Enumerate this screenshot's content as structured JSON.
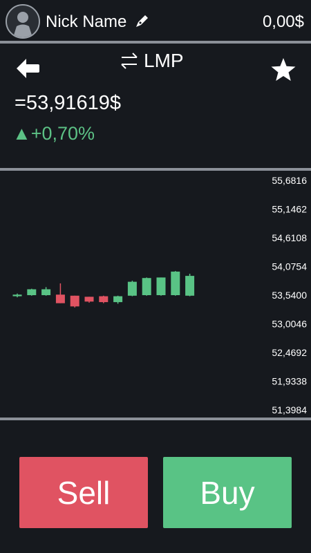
{
  "header": {
    "nickname": "Nick Name",
    "balance": "0,00$"
  },
  "ticker": {
    "symbol": "LMP",
    "price": "=53,91619$",
    "change": "+0,70%",
    "change_arrow": "▲"
  },
  "chart_data": {
    "type": "candlestick",
    "ylim": [
      51.3984,
      55.6816
    ],
    "y_ticks": [
      "55,6816",
      "55,1462",
      "54,6108",
      "54,0754",
      "53,5400",
      "53,0046",
      "52,4692",
      "51,9338",
      "51,3984"
    ],
    "candles": [
      {
        "open": 53.52,
        "close": 53.55,
        "high": 53.57,
        "low": 53.5
      },
      {
        "open": 53.54,
        "close": 53.65,
        "high": 53.66,
        "low": 53.53
      },
      {
        "open": 53.54,
        "close": 53.65,
        "high": 53.69,
        "low": 53.53
      },
      {
        "open": 53.55,
        "close": 53.39,
        "high": 53.76,
        "low": 53.39
      },
      {
        "open": 53.53,
        "close": 53.33,
        "high": 53.53,
        "low": 53.31
      },
      {
        "open": 53.51,
        "close": 53.42,
        "high": 53.51,
        "low": 53.4
      },
      {
        "open": 53.52,
        "close": 53.41,
        "high": 53.53,
        "low": 53.39
      },
      {
        "open": 53.41,
        "close": 53.52,
        "high": 53.53,
        "low": 53.38
      },
      {
        "open": 53.53,
        "close": 53.79,
        "high": 53.81,
        "low": 53.52
      },
      {
        "open": 53.54,
        "close": 53.86,
        "high": 53.87,
        "low": 53.53
      },
      {
        "open": 53.54,
        "close": 53.87,
        "high": 53.87,
        "low": 53.53
      },
      {
        "open": 53.54,
        "close": 53.98,
        "high": 53.99,
        "low": 53.53
      },
      {
        "open": 53.53,
        "close": 53.9,
        "high": 53.94,
        "low": 53.52
      }
    ],
    "colors": {
      "up": "#59c385",
      "down": "#e05362"
    }
  },
  "actions": {
    "sell_label": "Sell",
    "buy_label": "Buy"
  },
  "colors": {
    "background": "#16191e",
    "up": "#59c385",
    "down": "#e05362",
    "divider": "#8b9098"
  },
  "icons": [
    "avatar-icon",
    "edit-pen-icon",
    "back-arrow-icon",
    "swap-arrows-icon",
    "star-icon",
    "up-triangle-icon"
  ]
}
